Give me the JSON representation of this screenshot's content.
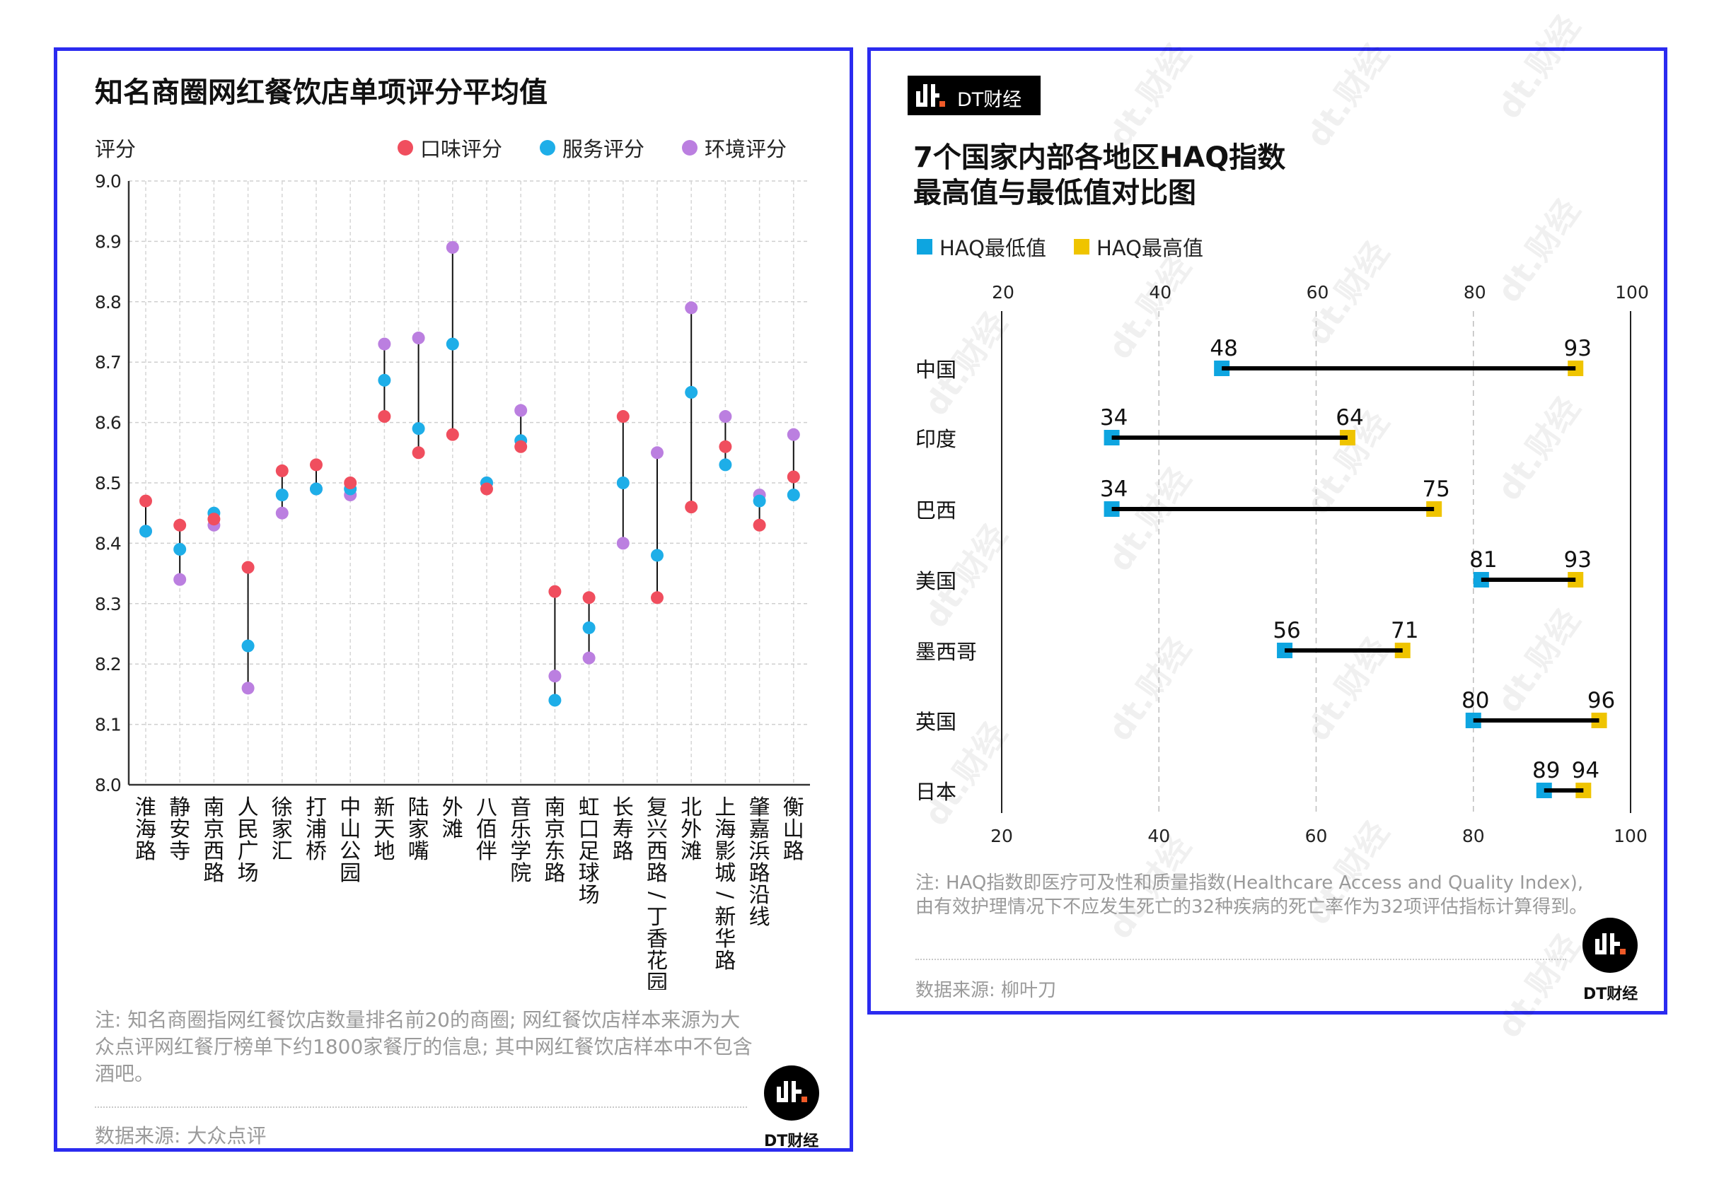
{
  "left_panel": {
    "title": "知名商圈网红餐饮店单项评分平均值",
    "y_axis_label": "评分",
    "legend": [
      {
        "label": "口味评分",
        "color": "#f04e5e"
      },
      {
        "label": "服务评分",
        "color": "#1eaee8"
      },
      {
        "label": "环境评分",
        "color": "#bb7fe0"
      }
    ],
    "note": "注: 知名商圈指网红餐饮店数量排名前20的商圈; 网红餐饮店样本来源为大众点评网红餐厅榜单下约1800家餐厅的信息; 其中网红餐饮店样本中不包含酒吧。",
    "source": "数据来源: 大众点评",
    "logo_caption": "DT财经"
  },
  "right_panel": {
    "brand_label": "DT财经",
    "title_line1": "7个国家内部各地区HAQ指数",
    "title_line2": "最高值与最低值对比图",
    "legend": [
      {
        "label": "HAQ最低值",
        "color": "#0ea5e0"
      },
      {
        "label": "HAQ最高值",
        "color": "#efc400"
      }
    ],
    "note": "注: HAQ指数即医疗可及性和质量指数(Healthcare Access and Quality Index), 由有效护理情况下不应发生死亡的32种疾病的死亡率作为32项评估指标计算得到。",
    "source": "数据来源: 柳叶刀",
    "logo_caption": "DT财经",
    "watermark": "dt.财经"
  },
  "chart_data": [
    {
      "type": "scatter",
      "title": "知名商圈网红餐饮店单项评分平均值",
      "xlabel": "",
      "ylabel": "评分",
      "ylim": [
        8.0,
        9.0
      ],
      "yticks": [
        "8.0",
        "8.1",
        "8.2",
        "8.3",
        "8.4",
        "8.5",
        "8.6",
        "8.7",
        "8.8",
        "8.9",
        "9.0"
      ],
      "grid": true,
      "legend_position": "top-right",
      "categories": [
        "淮海路",
        "静安寺",
        "南京西路",
        "人民广场",
        "徐家汇",
        "打浦桥",
        "中山公园",
        "新天地",
        "陆家嘴",
        "外滩",
        "八佰伴",
        "音乐学院",
        "南京东路",
        "虹口足球场",
        "长寿路",
        "复兴西路/丁香花园",
        "北外滩",
        "上海影城/新华路",
        "肇嘉浜路沿线",
        "衡山路"
      ],
      "series": [
        {
          "name": "口味评分",
          "color": "#f04e5e",
          "values": [
            8.47,
            8.43,
            8.44,
            8.36,
            8.52,
            8.53,
            8.5,
            8.61,
            8.55,
            8.58,
            8.49,
            8.56,
            8.32,
            8.31,
            8.61,
            8.31,
            8.46,
            8.56,
            8.43,
            8.51
          ]
        },
        {
          "name": "服务评分",
          "color": "#1eaee8",
          "values": [
            8.42,
            8.39,
            8.45,
            8.23,
            8.48,
            8.49,
            8.49,
            8.67,
            8.59,
            8.73,
            8.5,
            8.57,
            8.14,
            8.26,
            8.5,
            8.38,
            8.65,
            8.53,
            8.47,
            8.48
          ]
        },
        {
          "name": "环境评分",
          "color": "#bb7fe0",
          "values": [
            8.42,
            8.34,
            8.43,
            8.16,
            8.45,
            8.49,
            8.48,
            8.73,
            8.74,
            8.89,
            8.5,
            8.62,
            8.18,
            8.21,
            8.4,
            8.55,
            8.79,
            8.61,
            8.48,
            8.58
          ]
        }
      ]
    },
    {
      "type": "dumbbell",
      "title": "7个国家内部各地区HAQ指数最高值与最低值对比图",
      "xlim": [
        20,
        100
      ],
      "xticks": [
        "20",
        "40",
        "60",
        "80",
        "100"
      ],
      "grid": true,
      "legend_position": "top-left",
      "categories": [
        "中国",
        "印度",
        "巴西",
        "美国",
        "墨西哥",
        "英国",
        "日本"
      ],
      "series": [
        {
          "name": "HAQ最低值",
          "color": "#0ea5e0",
          "values": [
            48,
            34,
            34,
            81,
            56,
            80,
            89
          ]
        },
        {
          "name": "HAQ最高值",
          "color": "#efc400",
          "values": [
            93,
            64,
            75,
            93,
            71,
            96,
            94
          ]
        }
      ]
    }
  ]
}
